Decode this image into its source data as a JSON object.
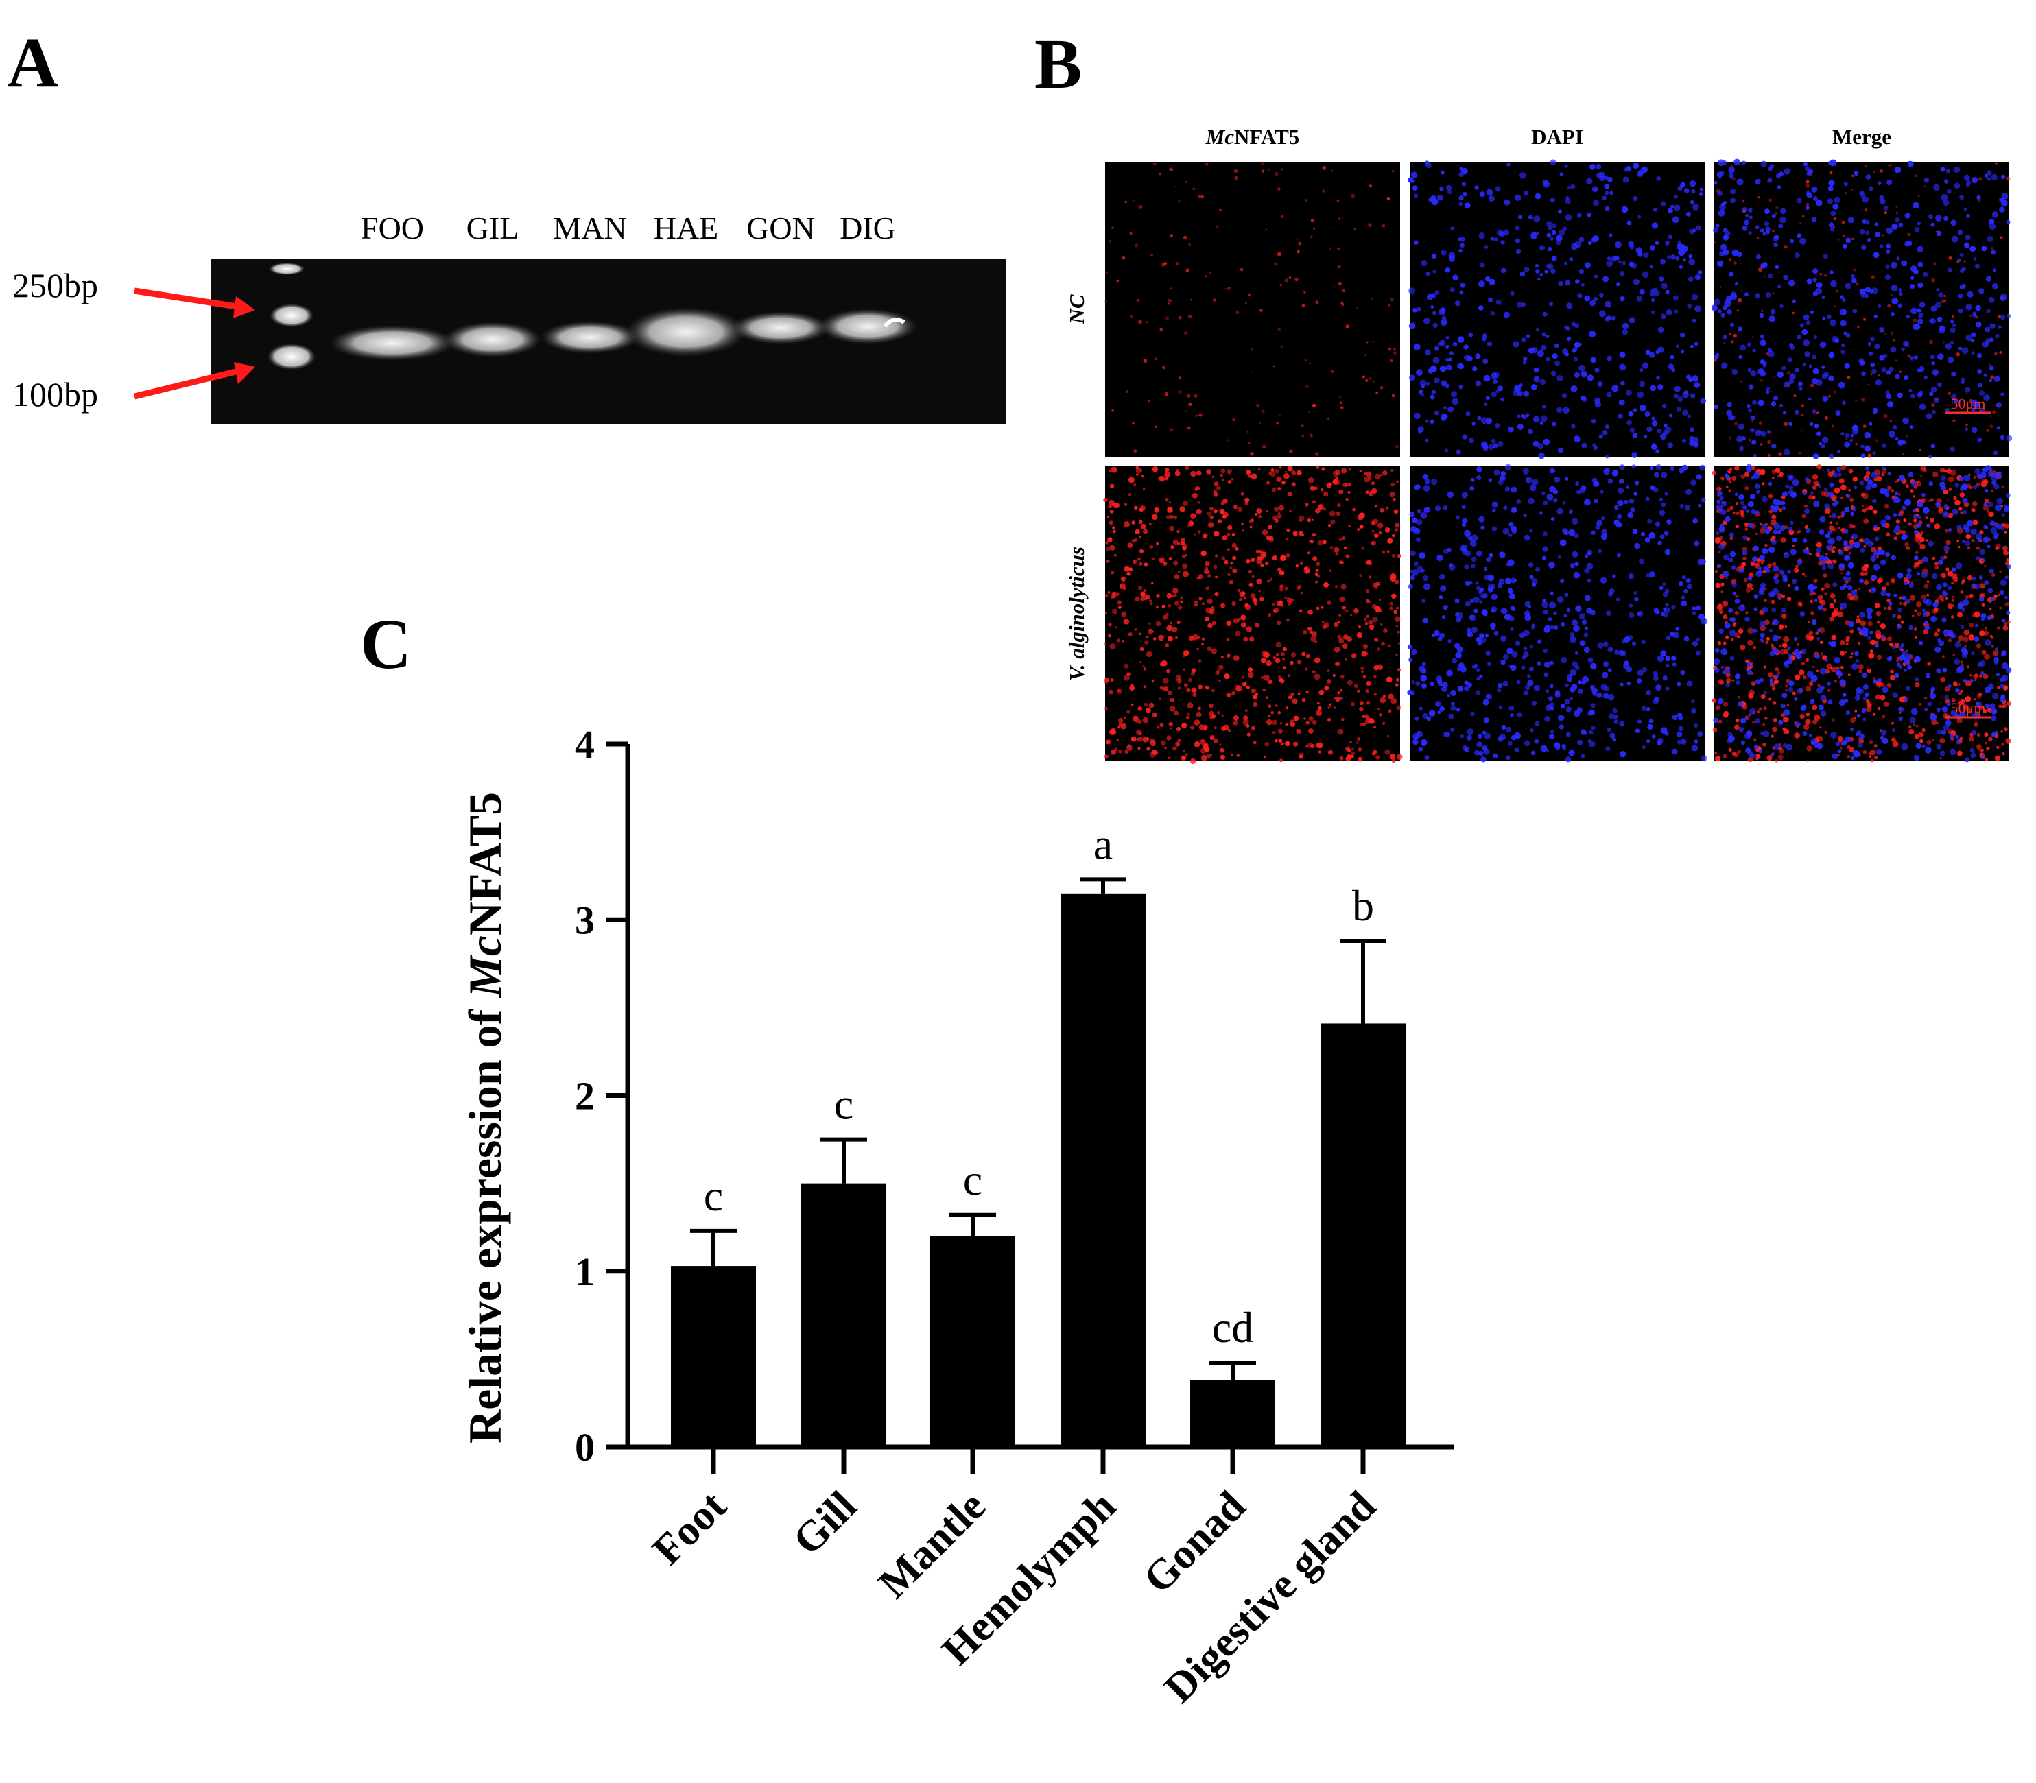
{
  "panels": {
    "a": "A",
    "b": "B",
    "c": "C"
  },
  "gel": {
    "lanes": [
      "FOO",
      "GIL",
      "MAN",
      "HAE",
      "GON",
      "DIG"
    ],
    "markers": [
      "250bp",
      "100bp"
    ],
    "colors": {
      "arrow": "#ff1a1a",
      "background": "#0a0a0a",
      "band": "#e6e6e6"
    }
  },
  "microscopy": {
    "channels": [
      {
        "prefix": "Mc",
        "suffix": "NFAT5"
      },
      {
        "prefix": "",
        "suffix": "DAPI"
      },
      {
        "prefix": "",
        "suffix": "Merge"
      }
    ],
    "groups": [
      "NC",
      "V. alginolyticus"
    ],
    "scale_bar": "50μm",
    "colors": {
      "mcnfat5": "#ff2020",
      "dapi": "#2a2aff",
      "scalebar": "#ff2a2a"
    }
  },
  "chart_data": {
    "type": "bar",
    "categories": [
      "Foot",
      "Gill",
      "Mantle",
      "Hemolymph",
      "Gonad",
      "Digestive gland"
    ],
    "values": [
      1.03,
      1.5,
      1.2,
      3.15,
      0.38,
      2.41
    ],
    "errors": [
      0.2,
      0.25,
      0.12,
      0.08,
      0.1,
      0.47
    ],
    "significance": [
      "c",
      "c",
      "c",
      "a",
      "cd",
      "b"
    ],
    "ylabel_prefix": "Relative expression of ",
    "ylabel_gene_prefix": "Mc",
    "ylabel_gene_suffix": "NFAT5",
    "ylim": [
      0,
      4
    ],
    "yticks": [
      0,
      1,
      2,
      3,
      4
    ],
    "bar_color": "#000000"
  }
}
